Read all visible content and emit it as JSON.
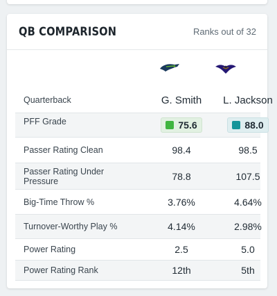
{
  "header": {
    "title": "QB COMPARISON",
    "subtitle": "Ranks out of 32"
  },
  "teams": [
    {
      "logo": "seahawks-logo-icon",
      "color": "#1a3a5c",
      "accent": "#69be28"
    },
    {
      "logo": "ravens-logo-icon",
      "color": "#241773",
      "accent": "#9e7c0c"
    }
  ],
  "rows": [
    {
      "label": "Quarterback",
      "v1": "G. Smith",
      "v2": "L. Jackson",
      "shaded": false
    },
    {
      "label": "PFF Grade",
      "v1": "75.6",
      "v2": "88.0",
      "shaded": true,
      "grade_colors": [
        "#3fb53f",
        "#13959a"
      ]
    },
    {
      "label": "Passer Rating Clean",
      "v1": "98.4",
      "v2": "98.5",
      "shaded": false
    },
    {
      "label": "Passer Rating Under Pressure",
      "v1": "78.8",
      "v2": "107.5",
      "shaded": true
    },
    {
      "label": "Big-Time Throw %",
      "v1": "3.76%",
      "v2": "4.64%",
      "shaded": false
    },
    {
      "label": "Turnover-Worthy Play %",
      "v1": "4.14%",
      "v2": "2.98%",
      "shaded": true
    },
    {
      "label": "Power Rating",
      "v1": "2.5",
      "v2": "5.0",
      "shaded": false
    },
    {
      "label": "Power Rating Rank",
      "v1": "12th",
      "v2": "5th",
      "shaded": true,
      "rank_fill": [
        0.66,
        0.88
      ]
    }
  ]
}
